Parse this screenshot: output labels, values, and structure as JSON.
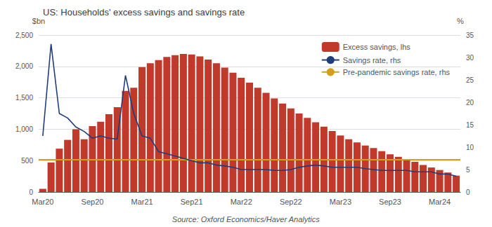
{
  "chart_data": {
    "type": "bar",
    "title": "US: Households' excess savings and savings rate",
    "source": "Source: Oxford Economics/Haver Analytics",
    "ylabel": "$bn",
    "y2label": "%",
    "categories": [
      "Mar20",
      null,
      null,
      null,
      null,
      null,
      "Sep20",
      null,
      null,
      null,
      null,
      null,
      "Mar21",
      null,
      null,
      null,
      null,
      null,
      "Sep21",
      null,
      null,
      null,
      null,
      null,
      "Mar22",
      null,
      null,
      null,
      null,
      null,
      "Sep22",
      null,
      null,
      null,
      null,
      null,
      "Mar23",
      null,
      null,
      null,
      null,
      null,
      "Sep23",
      null,
      null,
      null,
      null,
      null,
      "Mar24",
      null,
      null
    ],
    "ylim": [
      0,
      2500
    ],
    "yticks": [
      0,
      500,
      1000,
      1500,
      2000,
      2500
    ],
    "y2lim": [
      0,
      35
    ],
    "y2ticks": [
      0,
      5,
      10,
      15,
      20,
      25,
      30,
      35
    ],
    "grid": true,
    "legend": "upper right",
    "series": [
      {
        "name": "Excess savings, lhs",
        "type": "bar",
        "color": "#c0392b",
        "values": [
          50,
          470,
          690,
          830,
          1000,
          840,
          1050,
          1120,
          1240,
          1350,
          1610,
          1660,
          1990,
          2050,
          2100,
          2150,
          2180,
          2200,
          2190,
          2160,
          2110,
          2050,
          1980,
          1900,
          1820,
          1740,
          1660,
          1580,
          1490,
          1410,
          1330,
          1250,
          1180,
          1110,
          1040,
          970,
          900,
          840,
          790,
          740,
          700,
          650,
          600,
          560,
          520,
          480,
          430,
          390,
          350,
          310,
          260
        ]
      },
      {
        "name": "Savings rate, rhs",
        "type": "line",
        "color": "#1f3d7a",
        "axis": "y2",
        "values": [
          12.5,
          33.0,
          17.5,
          16.5,
          14.5,
          13.5,
          12.0,
          12.5,
          12.0,
          11.8,
          26.0,
          17.5,
          12.5,
          12.0,
          9.0,
          8.5,
          8.0,
          7.5,
          7.0,
          6.5,
          6.5,
          6.0,
          5.8,
          5.5,
          5.0,
          5.0,
          5.0,
          5.0,
          4.8,
          4.8,
          5.0,
          5.5,
          5.8,
          6.0,
          5.8,
          5.5,
          5.5,
          5.5,
          5.5,
          5.2,
          5.0,
          4.8,
          4.8,
          4.8,
          4.8,
          4.5,
          4.5,
          4.5,
          4.0,
          4.0,
          3.5
        ]
      },
      {
        "name": "Pre-pandemic savings rate, rhs",
        "type": "hline",
        "color": "#d4a017",
        "axis": "y2",
        "value": 7.3
      }
    ]
  }
}
